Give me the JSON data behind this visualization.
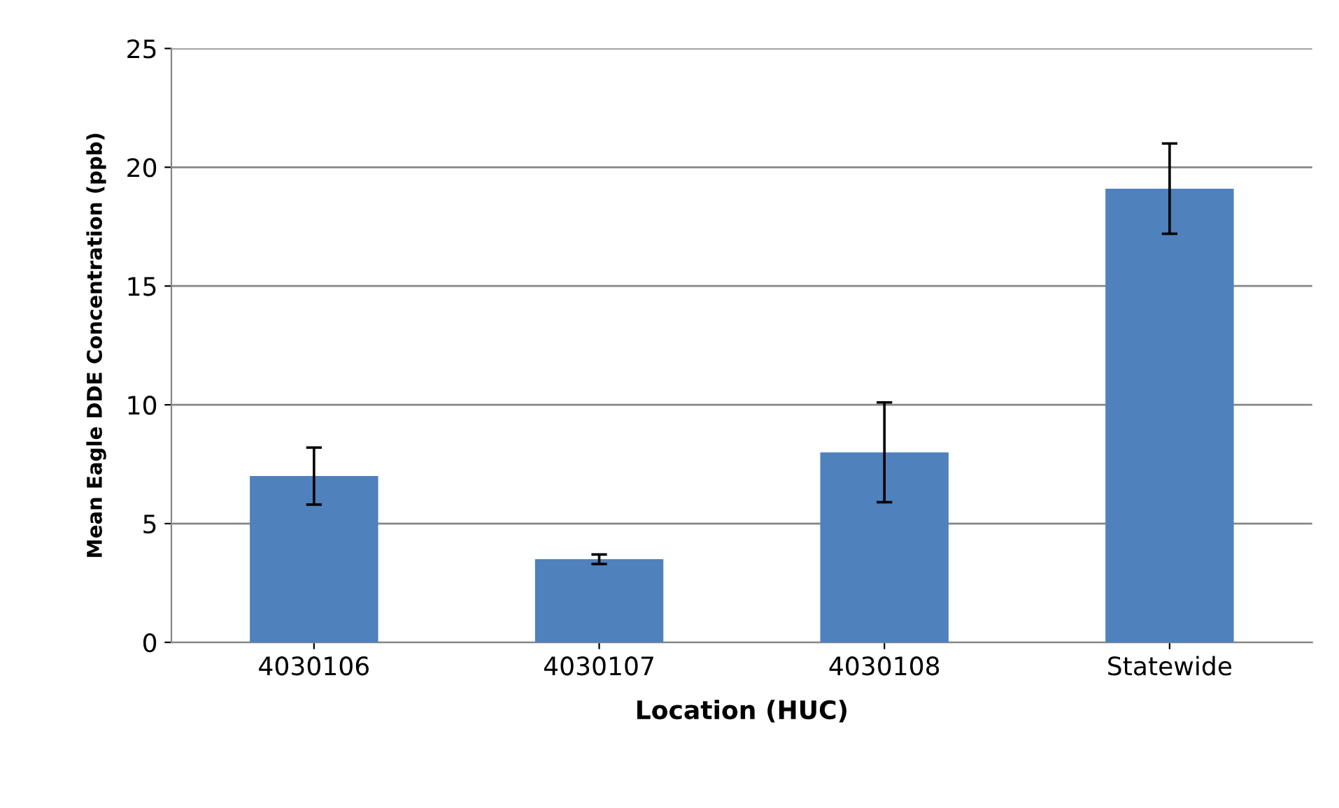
{
  "chart_data": {
    "type": "bar",
    "xlabel": "Location (HUC)",
    "ylabel": "Mean Eagle DDE Concentration (ppb)",
    "categories": [
      "4030106",
      "4030107",
      "4030108",
      "Statewide"
    ],
    "values": [
      7.0,
      3.5,
      8.0,
      19.1
    ],
    "errors": [
      1.2,
      0.2,
      2.1,
      1.9
    ],
    "color": "#4f81bd",
    "ylim": [
      0,
      25
    ],
    "yticks": [
      0,
      5,
      10,
      15,
      20,
      25
    ],
    "grid": "y",
    "legend": false
  }
}
